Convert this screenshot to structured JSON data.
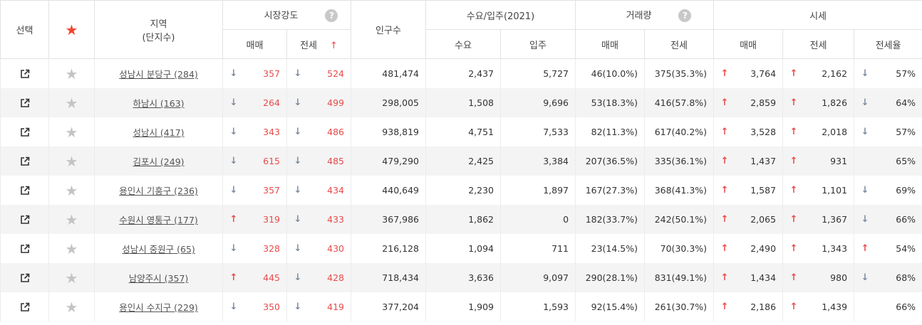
{
  "header": {
    "select": "선택",
    "region_line1": "지역",
    "region_line2": "(단지수)",
    "market_strength": "시장강도",
    "population": "인구수",
    "demand_supply": "수요/입주(2021)",
    "transactions": "거래량",
    "price": "시세",
    "sale": "매매",
    "jeonse": "전세",
    "demand": "수요",
    "supply": "입주",
    "jeonse_ratio": "전세율",
    "help": "?",
    "sort_indicator": "↑"
  },
  "rows": [
    {
      "region": "성남시 분당구 (284)",
      "ms_sale_dir": "down",
      "ms_sale": "357",
      "ms_jeonse_dir": "down",
      "ms_jeonse": "524",
      "population": "481,474",
      "demand": "2,437",
      "supply": "5,727",
      "tx_sale": "46(10.0%)",
      "tx_jeonse": "375(35.3%)",
      "p_sale_dir": "up",
      "p_sale": "3,764",
      "p_jeonse_dir": "up",
      "p_jeonse": "2,162",
      "ratio_dir": "down",
      "ratio": "57%"
    },
    {
      "region": "하남시 (163)",
      "ms_sale_dir": "down",
      "ms_sale": "264",
      "ms_jeonse_dir": "down",
      "ms_jeonse": "499",
      "population": "298,005",
      "demand": "1,508",
      "supply": "9,696",
      "tx_sale": "53(18.3%)",
      "tx_jeonse": "416(57.8%)",
      "p_sale_dir": "up",
      "p_sale": "2,859",
      "p_jeonse_dir": "up",
      "p_jeonse": "1,826",
      "ratio_dir": "down",
      "ratio": "64%"
    },
    {
      "region": "성남시 (417)",
      "ms_sale_dir": "down",
      "ms_sale": "343",
      "ms_jeonse_dir": "down",
      "ms_jeonse": "486",
      "population": "938,819",
      "demand": "4,751",
      "supply": "7,533",
      "tx_sale": "82(11.3%)",
      "tx_jeonse": "617(40.2%)",
      "p_sale_dir": "up",
      "p_sale": "3,528",
      "p_jeonse_dir": "up",
      "p_jeonse": "2,018",
      "ratio_dir": "down",
      "ratio": "57%"
    },
    {
      "region": "김포시 (249)",
      "ms_sale_dir": "down",
      "ms_sale": "615",
      "ms_jeonse_dir": "down",
      "ms_jeonse": "485",
      "population": "479,290",
      "demand": "2,425",
      "supply": "3,384",
      "tx_sale": "207(36.5%)",
      "tx_jeonse": "335(36.1%)",
      "p_sale_dir": "up",
      "p_sale": "1,437",
      "p_jeonse_dir": "up",
      "p_jeonse": "931",
      "ratio_dir": "",
      "ratio": "65%"
    },
    {
      "region": "용인시 기흥구 (236)",
      "ms_sale_dir": "down",
      "ms_sale": "357",
      "ms_jeonse_dir": "down",
      "ms_jeonse": "434",
      "population": "440,649",
      "demand": "2,230",
      "supply": "1,897",
      "tx_sale": "167(27.3%)",
      "tx_jeonse": "368(41.3%)",
      "p_sale_dir": "up",
      "p_sale": "1,587",
      "p_jeonse_dir": "up",
      "p_jeonse": "1,101",
      "ratio_dir": "down",
      "ratio": "69%"
    },
    {
      "region": "수원시 영통구 (177)",
      "ms_sale_dir": "up",
      "ms_sale": "319",
      "ms_jeonse_dir": "down",
      "ms_jeonse": "433",
      "population": "367,986",
      "demand": "1,862",
      "supply": "0",
      "tx_sale": "182(33.7%)",
      "tx_jeonse": "242(50.1%)",
      "p_sale_dir": "up",
      "p_sale": "2,065",
      "p_jeonse_dir": "up",
      "p_jeonse": "1,367",
      "ratio_dir": "down",
      "ratio": "66%"
    },
    {
      "region": "성남시 중원구 (65)",
      "ms_sale_dir": "down",
      "ms_sale": "328",
      "ms_jeonse_dir": "down",
      "ms_jeonse": "430",
      "population": "216,128",
      "demand": "1,094",
      "supply": "711",
      "tx_sale": "23(14.5%)",
      "tx_jeonse": "70(30.3%)",
      "p_sale_dir": "up",
      "p_sale": "2,490",
      "p_jeonse_dir": "up",
      "p_jeonse": "1,343",
      "ratio_dir": "up",
      "ratio": "54%"
    },
    {
      "region": "남양주시 (357)",
      "ms_sale_dir": "up",
      "ms_sale": "445",
      "ms_jeonse_dir": "down",
      "ms_jeonse": "428",
      "population": "718,434",
      "demand": "3,636",
      "supply": "9,097",
      "tx_sale": "290(28.1%)",
      "tx_jeonse": "831(49.1%)",
      "p_sale_dir": "up",
      "p_sale": "1,434",
      "p_jeonse_dir": "up",
      "p_jeonse": "980",
      "ratio_dir": "down",
      "ratio": "68%"
    },
    {
      "region": "용인시 수지구 (229)",
      "ms_sale_dir": "down",
      "ms_sale": "350",
      "ms_jeonse_dir": "down",
      "ms_jeonse": "419",
      "population": "377,204",
      "demand": "1,909",
      "supply": "1,593",
      "tx_sale": "92(15.4%)",
      "tx_jeonse": "261(30.7%)",
      "p_sale_dir": "up",
      "p_sale": "2,186",
      "p_jeonse_dir": "up",
      "p_jeonse": "1,439",
      "ratio_dir": "",
      "ratio": "66%"
    }
  ],
  "icons": {
    "open": "external-link-icon",
    "star": "star-icon",
    "up": "arrow-up-icon",
    "down": "arrow-down-icon"
  },
  "colors": {
    "up": "#e94a4a",
    "down": "#7d8ba0",
    "star_active": "#f0442e",
    "star_inactive": "#c4c4c4"
  }
}
